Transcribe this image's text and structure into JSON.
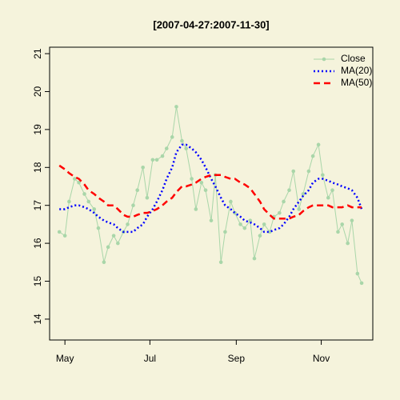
{
  "chart_data": {
    "type": "line",
    "title": "[2007-04-27:2007-11-30]",
    "x": [
      "2007-04-27",
      "2007-05-01",
      "2007-05-04",
      "2007-05-08",
      "2007-05-11",
      "2007-05-15",
      "2007-05-18",
      "2007-05-22",
      "2007-05-25",
      "2007-05-29",
      "2007-06-01",
      "2007-06-05",
      "2007-06-08",
      "2007-06-12",
      "2007-06-15",
      "2007-06-19",
      "2007-06-22",
      "2007-06-26",
      "2007-06-29",
      "2007-07-03",
      "2007-07-06",
      "2007-07-10",
      "2007-07-13",
      "2007-07-17",
      "2007-07-20",
      "2007-07-24",
      "2007-07-27",
      "2007-07-31",
      "2007-08-03",
      "2007-08-07",
      "2007-08-10",
      "2007-08-14",
      "2007-08-17",
      "2007-08-21",
      "2007-08-24",
      "2007-08-28",
      "2007-08-31",
      "2007-09-04",
      "2007-09-07",
      "2007-09-11",
      "2007-09-14",
      "2007-09-18",
      "2007-09-21",
      "2007-09-25",
      "2007-09-28",
      "2007-10-02",
      "2007-10-05",
      "2007-10-09",
      "2007-10-12",
      "2007-10-16",
      "2007-10-19",
      "2007-10-23",
      "2007-10-26",
      "2007-10-30",
      "2007-11-02",
      "2007-11-06",
      "2007-11-09",
      "2007-11-13",
      "2007-11-16",
      "2007-11-20",
      "2007-11-23",
      "2007-11-27",
      "2007-11-30"
    ],
    "series": [
      {
        "name": "Close",
        "color": "#a9d6a9",
        "style": "points",
        "values": [
          16.3,
          16.2,
          17.1,
          17.7,
          17.6,
          17.3,
          17.1,
          16.9,
          16.4,
          15.5,
          15.9,
          16.2,
          16.0,
          16.3,
          16.5,
          17.0,
          17.4,
          18.0,
          17.2,
          18.2,
          18.2,
          18.3,
          18.5,
          18.8,
          19.6,
          18.7,
          18.5,
          17.7,
          16.9,
          17.6,
          17.4,
          16.6,
          17.8,
          15.5,
          16.3,
          17.1,
          16.8,
          16.5,
          16.4,
          16.6,
          15.6,
          16.2,
          16.5,
          16.3,
          16.7,
          16.8,
          17.1,
          17.4,
          17.9,
          16.9,
          17.3,
          17.9,
          18.3,
          18.6,
          17.8,
          17.2,
          17.4,
          16.3,
          16.5,
          16.0,
          16.6,
          15.2,
          14.95
        ]
      },
      {
        "name": "MA(20)",
        "color": "#0000ff",
        "style": "dotted",
        "values": [
          16.9,
          16.9,
          16.95,
          17.0,
          17.0,
          16.95,
          16.9,
          16.8,
          16.7,
          16.6,
          16.55,
          16.5,
          16.4,
          16.3,
          16.3,
          16.3,
          16.4,
          16.5,
          16.7,
          16.9,
          17.1,
          17.4,
          17.7,
          18.0,
          18.4,
          18.6,
          18.6,
          18.5,
          18.4,
          18.2,
          18.0,
          17.7,
          17.5,
          17.2,
          17.0,
          16.9,
          16.8,
          16.7,
          16.6,
          16.55,
          16.5,
          16.4,
          16.3,
          16.3,
          16.35,
          16.4,
          16.5,
          16.7,
          16.9,
          17.1,
          17.25,
          17.4,
          17.6,
          17.7,
          17.7,
          17.65,
          17.6,
          17.55,
          17.5,
          17.45,
          17.4,
          17.2,
          16.9
        ]
      },
      {
        "name": "MA(50)",
        "color": "#ff0000",
        "style": "dashed",
        "values": [
          18.05,
          17.95,
          17.85,
          17.75,
          17.7,
          17.55,
          17.4,
          17.3,
          17.2,
          17.1,
          17.0,
          17.0,
          16.9,
          16.75,
          16.7,
          16.7,
          16.75,
          16.8,
          16.8,
          16.85,
          16.9,
          17.0,
          17.1,
          17.2,
          17.35,
          17.5,
          17.5,
          17.55,
          17.6,
          17.7,
          17.75,
          17.8,
          17.8,
          17.8,
          17.75,
          17.7,
          17.7,
          17.6,
          17.55,
          17.45,
          17.3,
          17.1,
          16.9,
          16.75,
          16.65,
          16.65,
          16.65,
          16.65,
          16.7,
          16.75,
          16.85,
          16.95,
          17.0,
          17.0,
          17.0,
          17.0,
          16.95,
          16.95,
          16.95,
          17.0,
          16.95,
          16.95,
          16.95
        ]
      }
    ],
    "xlim": [
      "2007-04-20",
      "2007-12-08"
    ],
    "xticks": [
      {
        "value": "2007-05-01",
        "label": "May"
      },
      {
        "value": "2007-07-01",
        "label": "Jul"
      },
      {
        "value": "2007-09-01",
        "label": "Sep"
      },
      {
        "value": "2007-11-01",
        "label": "Nov"
      }
    ],
    "ylim": [
      13.45,
      21.17
    ],
    "yticks": [
      14,
      15,
      16,
      17,
      18,
      19,
      20,
      21
    ],
    "legend": "top-right"
  }
}
